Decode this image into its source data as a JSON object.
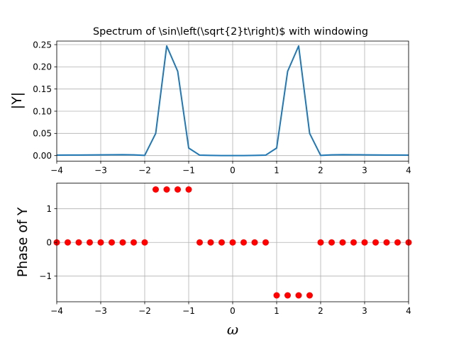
{
  "chart_data": [
    {
      "type": "line",
      "title": "Spectrum of \\sin\\left(\\sqrt{2}t\\right)$ with windowing",
      "ylabel": "|Y|",
      "xlabel": "",
      "xlim": [
        -4,
        4
      ],
      "ylim": [
        -0.0125,
        0.258
      ],
      "grid": true,
      "x_ticks": [
        "−4",
        "−3",
        "−2",
        "−1",
        "0",
        "1",
        "2",
        "3",
        "4"
      ],
      "y_ticks": [
        "0.00",
        "0.05",
        "0.10",
        "0.15",
        "0.20",
        "0.25"
      ],
      "series": [
        {
          "color": "#1f77b4",
          "x": [
            -4,
            -3.75,
            -3.5,
            -3.25,
            -3,
            -2.75,
            -2.5,
            -2.25,
            -2,
            -1.75,
            -1.5,
            -1.25,
            -1,
            -0.75,
            -0.5,
            -0.25,
            0,
            0.25,
            0.5,
            0.75,
            1,
            1.25,
            1.5,
            1.75,
            2,
            2.25,
            2.5,
            2.75,
            3,
            3.25,
            3.5,
            3.75,
            4
          ],
          "y": [
            0.001,
            0.0012,
            0.0013,
            0.0015,
            0.0017,
            0.0019,
            0.0021,
            0.0017,
            0.0005,
            0.05,
            0.247,
            0.19,
            0.017,
            0.001,
            0.0005,
            0.0001,
            0,
            0.0001,
            0.0005,
            0.001,
            0.017,
            0.19,
            0.247,
            0.05,
            0.0005,
            0.0017,
            0.0021,
            0.0019,
            0.0017,
            0.0015,
            0.0013,
            0.0012,
            0.001
          ]
        }
      ]
    },
    {
      "type": "scatter",
      "title": "",
      "ylabel": "Phase of Y",
      "xlabel": "ω",
      "xlim": [
        -4,
        4
      ],
      "ylim": [
        -1.76,
        1.76
      ],
      "grid": true,
      "x_ticks": [
        "−4",
        "−3",
        "−2",
        "−1",
        "0",
        "1",
        "2",
        "3",
        "4"
      ],
      "y_ticks": [
        "−1",
        "0",
        "1"
      ],
      "series": [
        {
          "color": "#ff0000",
          "x": [
            -4,
            -3.75,
            -3.5,
            -3.25,
            -3,
            -2.75,
            -2.5,
            -2.25,
            -2,
            -1.75,
            -1.5,
            -1.25,
            -1,
            -0.75,
            -0.5,
            -0.25,
            0,
            0.25,
            0.5,
            0.75,
            1,
            1.25,
            1.5,
            1.75,
            2,
            2.25,
            2.5,
            2.75,
            3,
            3.25,
            3.5,
            3.75,
            4
          ],
          "y": [
            0,
            0,
            0,
            0,
            0,
            0,
            0,
            0,
            0,
            1.5708,
            1.5708,
            1.5708,
            1.5708,
            0,
            0,
            0,
            0,
            0,
            0,
            0,
            -1.5708,
            -1.5708,
            -1.5708,
            -1.5708,
            0,
            0,
            0,
            0,
            0,
            0,
            0,
            0,
            0
          ]
        }
      ]
    }
  ]
}
